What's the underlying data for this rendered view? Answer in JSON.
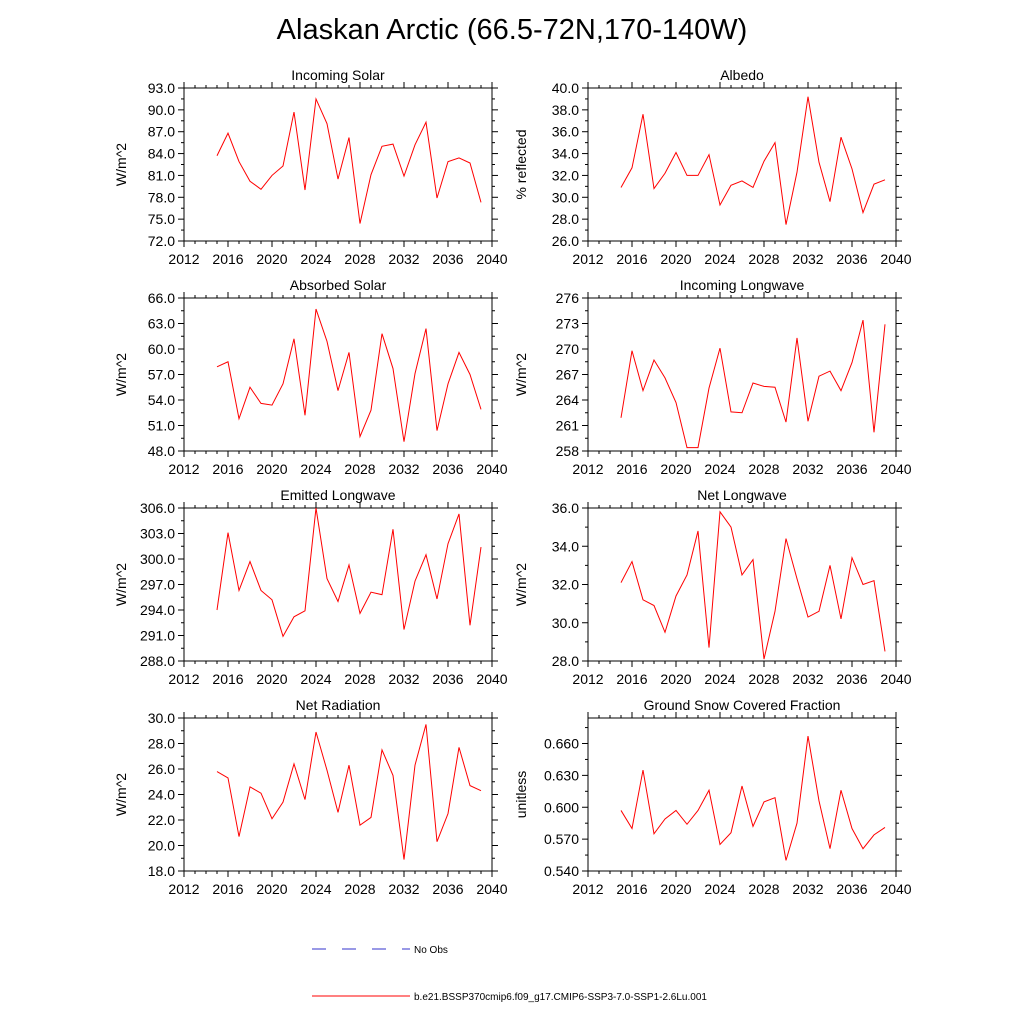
{
  "title": "Alaskan Arctic (66.5-72N,170-140W)",
  "chart_data": [
    {
      "type": "line",
      "title": "Incoming Solar",
      "ylabel": "W/m^2",
      "xlim": [
        2012,
        2040
      ],
      "xticks": [
        2012,
        2016,
        2020,
        2024,
        2028,
        2032,
        2036,
        2040
      ],
      "ylim": [
        72,
        93
      ],
      "yticks": [
        "72.0",
        "75.0",
        "78.0",
        "81.0",
        "84.0",
        "87.0",
        "90.0",
        "93.0"
      ],
      "x": [
        2015,
        2016,
        2017,
        2018,
        2019,
        2020,
        2021,
        2022,
        2023,
        2024,
        2025,
        2026,
        2027,
        2028,
        2029,
        2030,
        2031,
        2032,
        2033,
        2034,
        2035,
        2036,
        2037,
        2038,
        2039
      ],
      "series": [
        {
          "values": [
            83.7,
            86.8,
            82.9,
            80.2,
            79.1,
            81.0,
            82.3,
            89.7,
            79.0,
            91.5,
            88.1,
            80.5,
            86.2,
            74.4,
            81.1,
            85.0,
            85.3,
            80.9,
            85.2,
            88.3,
            77.9,
            82.9,
            83.4,
            82.7,
            77.3
          ],
          "color": "#ff0000"
        }
      ]
    },
    {
      "type": "line",
      "title": "Albedo",
      "ylabel": "% reflected",
      "xlim": [
        2012,
        2040
      ],
      "xticks": [
        2012,
        2016,
        2020,
        2024,
        2028,
        2032,
        2036,
        2040
      ],
      "ylim": [
        26,
        40
      ],
      "yticks": [
        "26.0",
        "28.0",
        "30.0",
        "32.0",
        "34.0",
        "36.0",
        "38.0",
        "40.0"
      ],
      "x": [
        2015,
        2016,
        2017,
        2018,
        2019,
        2020,
        2021,
        2022,
        2023,
        2024,
        2025,
        2026,
        2027,
        2028,
        2029,
        2030,
        2031,
        2032,
        2033,
        2034,
        2035,
        2036,
        2037,
        2038,
        2039
      ],
      "series": [
        {
          "values": [
            30.9,
            32.7,
            37.6,
            30.8,
            32.2,
            34.1,
            32.0,
            32.0,
            33.9,
            29.3,
            31.1,
            31.5,
            30.9,
            33.3,
            35.0,
            27.5,
            32.3,
            39.2,
            33.2,
            29.6,
            35.5,
            32.6,
            28.6,
            31.2,
            31.6
          ],
          "color": "#ff0000"
        }
      ]
    },
    {
      "type": "line",
      "title": "Absorbed Solar",
      "ylabel": "W/m^2",
      "xlim": [
        2012,
        2040
      ],
      "xticks": [
        2012,
        2016,
        2020,
        2024,
        2028,
        2032,
        2036,
        2040
      ],
      "ylim": [
        48,
        66
      ],
      "yticks": [
        "48.0",
        "51.0",
        "54.0",
        "57.0",
        "60.0",
        "63.0",
        "66.0"
      ],
      "x": [
        2015,
        2016,
        2017,
        2018,
        2019,
        2020,
        2021,
        2022,
        2023,
        2024,
        2025,
        2026,
        2027,
        2028,
        2029,
        2030,
        2031,
        2032,
        2033,
        2034,
        2035,
        2036,
        2037,
        2038,
        2039
      ],
      "series": [
        {
          "values": [
            57.9,
            58.5,
            51.8,
            55.5,
            53.6,
            53.4,
            55.9,
            61.2,
            52.2,
            64.7,
            60.9,
            55.1,
            59.6,
            49.7,
            52.8,
            61.8,
            57.7,
            49.1,
            57.1,
            62.4,
            50.4,
            55.9,
            59.6,
            57.0,
            52.9
          ],
          "color": "#ff0000"
        }
      ]
    },
    {
      "type": "line",
      "title": "Incoming Longwave",
      "ylabel": "W/m^2",
      "xlim": [
        2012,
        2040
      ],
      "xticks": [
        2012,
        2016,
        2020,
        2024,
        2028,
        2032,
        2036,
        2040
      ],
      "ylim": [
        258,
        276
      ],
      "yticks": [
        "258",
        "261",
        "264",
        "267",
        "270",
        "273",
        "276"
      ],
      "x": [
        2015,
        2016,
        2017,
        2018,
        2019,
        2020,
        2021,
        2022,
        2023,
        2024,
        2025,
        2026,
        2027,
        2028,
        2029,
        2030,
        2031,
        2032,
        2033,
        2034,
        2035,
        2036,
        2037,
        2038,
        2039
      ],
      "series": [
        {
          "values": [
            261.9,
            269.8,
            265.1,
            268.7,
            266.6,
            263.7,
            258.4,
            258.4,
            265.4,
            270.1,
            262.6,
            262.5,
            266.0,
            265.6,
            265.5,
            261.4,
            271.3,
            261.5,
            266.8,
            267.4,
            265.1,
            268.4,
            273.4,
            260.2,
            272.9
          ],
          "color": "#ff0000"
        }
      ]
    },
    {
      "type": "line",
      "title": "Emitted Longwave",
      "ylabel": "W/m^2",
      "xlim": [
        2012,
        2040
      ],
      "xticks": [
        2012,
        2016,
        2020,
        2024,
        2028,
        2032,
        2036,
        2040
      ],
      "ylim": [
        288,
        306
      ],
      "yticks": [
        "288.0",
        "291.0",
        "294.0",
        "297.0",
        "300.0",
        "303.0",
        "306.0"
      ],
      "x": [
        2015,
        2016,
        2017,
        2018,
        2019,
        2020,
        2021,
        2022,
        2023,
        2024,
        2025,
        2026,
        2027,
        2028,
        2029,
        2030,
        2031,
        2032,
        2033,
        2034,
        2035,
        2036,
        2037,
        2038,
        2039
      ],
      "series": [
        {
          "values": [
            294.0,
            303.1,
            296.3,
            299.7,
            296.3,
            295.2,
            290.9,
            293.2,
            293.9,
            306.0,
            297.7,
            295.0,
            299.3,
            293.6,
            296.1,
            295.8,
            303.5,
            291.7,
            297.4,
            300.5,
            295.3,
            301.8,
            305.3,
            292.2,
            301.4
          ],
          "color": "#ff0000"
        }
      ]
    },
    {
      "type": "line",
      "title": "Net Longwave",
      "ylabel": "W/m^2",
      "xlim": [
        2012,
        2040
      ],
      "xticks": [
        2012,
        2016,
        2020,
        2024,
        2028,
        2032,
        2036,
        2040
      ],
      "ylim": [
        28,
        36
      ],
      "yticks": [
        "28.0",
        "30.0",
        "32.0",
        "34.0",
        "36.0"
      ],
      "x": [
        2015,
        2016,
        2017,
        2018,
        2019,
        2020,
        2021,
        2022,
        2023,
        2024,
        2025,
        2026,
        2027,
        2028,
        2029,
        2030,
        2031,
        2032,
        2033,
        2034,
        2035,
        2036,
        2037,
        2038,
        2039
      ],
      "series": [
        {
          "values": [
            32.1,
            33.2,
            31.2,
            30.9,
            29.5,
            31.4,
            32.5,
            34.8,
            28.7,
            35.8,
            35.0,
            32.5,
            33.3,
            28.1,
            30.6,
            34.4,
            32.3,
            30.3,
            30.6,
            33.0,
            30.2,
            33.4,
            32.0,
            32.2,
            28.5
          ],
          "color": "#ff0000"
        }
      ]
    },
    {
      "type": "line",
      "title": "Net Radiation",
      "ylabel": "W/m^2",
      "xlim": [
        2012,
        2040
      ],
      "xticks": [
        2012,
        2016,
        2020,
        2024,
        2028,
        2032,
        2036,
        2040
      ],
      "ylim": [
        18,
        30
      ],
      "yticks": [
        "18.0",
        "20.0",
        "22.0",
        "24.0",
        "26.0",
        "28.0",
        "30.0"
      ],
      "x": [
        2015,
        2016,
        2017,
        2018,
        2019,
        2020,
        2021,
        2022,
        2023,
        2024,
        2025,
        2026,
        2027,
        2028,
        2029,
        2030,
        2031,
        2032,
        2033,
        2034,
        2035,
        2036,
        2037,
        2038,
        2039
      ],
      "series": [
        {
          "values": [
            25.8,
            25.3,
            20.7,
            24.6,
            24.1,
            22.1,
            23.4,
            26.4,
            23.6,
            28.9,
            25.9,
            22.6,
            26.3,
            21.6,
            22.2,
            27.5,
            25.5,
            18.9,
            26.3,
            29.5,
            20.3,
            22.5,
            27.7,
            24.7,
            24.3
          ],
          "color": "#ff0000"
        }
      ]
    },
    {
      "type": "line",
      "title": "Ground Snow Covered Fraction",
      "ylabel": "unitless",
      "xlim": [
        2012,
        2040
      ],
      "xticks": [
        2012,
        2016,
        2020,
        2024,
        2028,
        2032,
        2036,
        2040
      ],
      "ylim": [
        0.54,
        0.684
      ],
      "yticks": [
        "0.540",
        "0.570",
        "0.600",
        "0.630",
        "0.660"
      ],
      "x": [
        2015,
        2016,
        2017,
        2018,
        2019,
        2020,
        2021,
        2022,
        2023,
        2024,
        2025,
        2026,
        2027,
        2028,
        2029,
        2030,
        2031,
        2032,
        2033,
        2034,
        2035,
        2036,
        2037,
        2038,
        2039
      ],
      "series": [
        {
          "values": [
            0.597,
            0.58,
            0.635,
            0.575,
            0.589,
            0.597,
            0.584,
            0.597,
            0.616,
            0.565,
            0.576,
            0.62,
            0.582,
            0.605,
            0.609,
            0.55,
            0.585,
            0.667,
            0.606,
            0.561,
            0.616,
            0.58,
            0.561,
            0.574,
            0.581
          ],
          "color": "#ff0000"
        }
      ]
    }
  ],
  "legend": [
    {
      "label": "No Obs",
      "color": "#3333cc",
      "dash": "dashed"
    },
    {
      "label": "b.e21.BSSP370cmip6.f09_g17.CMIP6-SSP3-7.0-SSP1-2.6Lu.001",
      "color": "#ff0000",
      "dash": "solid"
    }
  ]
}
